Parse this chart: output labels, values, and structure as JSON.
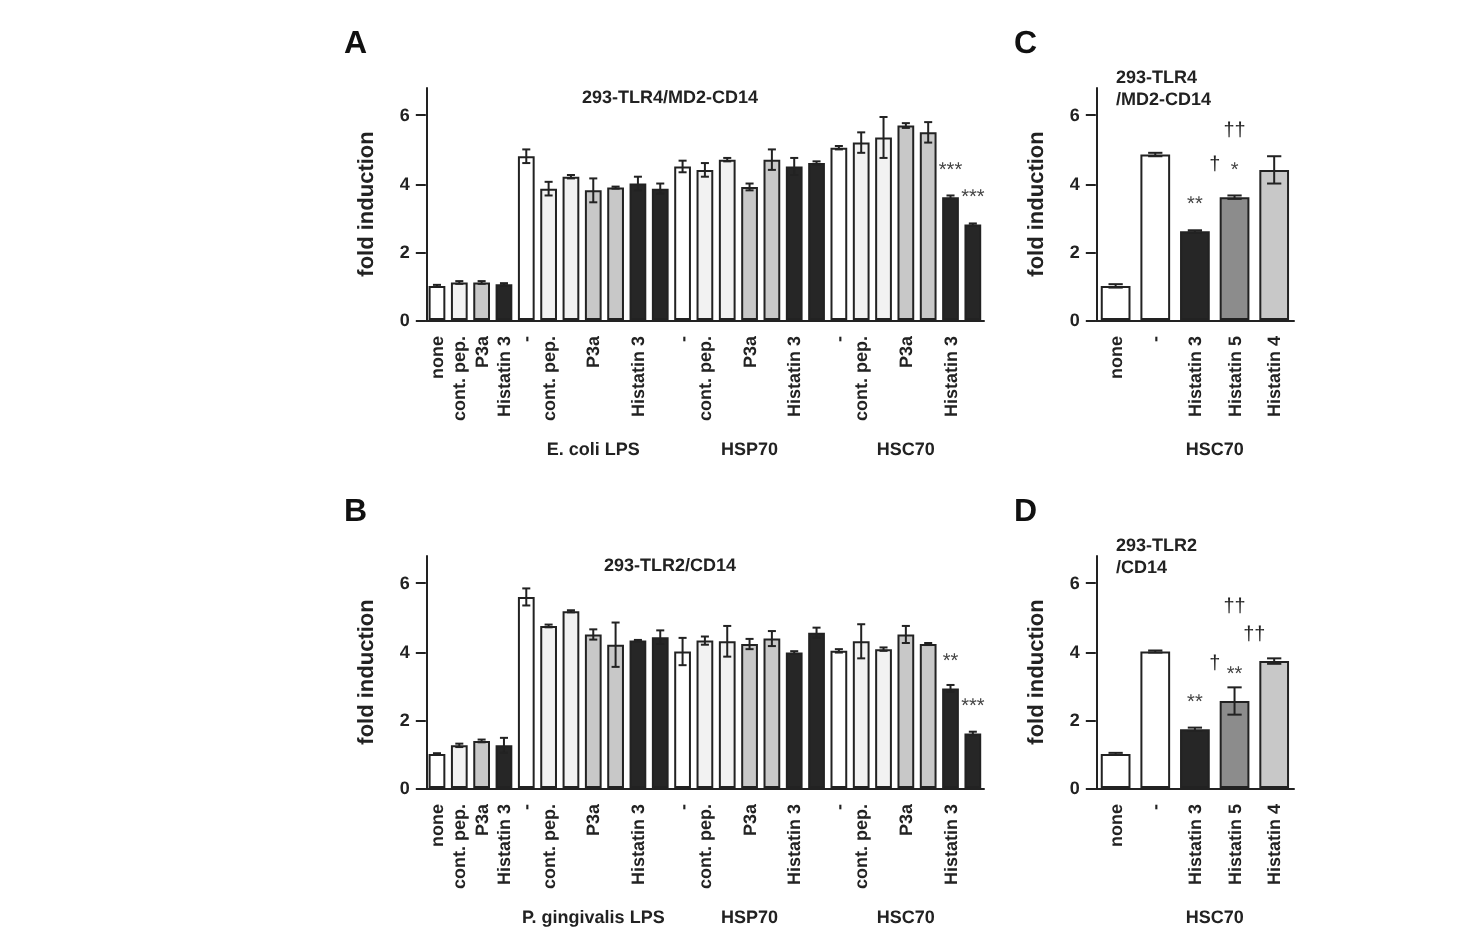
{
  "chart_data": [
    {
      "type": "bar",
      "title": "293-TLR4/MD2-CD14",
      "ylabel": "fold induction",
      "ylim": [
        0,
        6.8
      ],
      "yticks": [
        0,
        2,
        4,
        6
      ],
      "categories": [
        "none",
        "cont. pep.",
        "P3a",
        "Histatin 3",
        "-",
        "cont. pep.",
        null,
        "P3a",
        null,
        "Histatin 3",
        null,
        "-",
        "cont. pep.",
        null,
        "P3a",
        null,
        "Histatin 3",
        null,
        "-",
        "cont. pep.",
        null,
        "P3a",
        null,
        "Histatin 3",
        null
      ],
      "values": [
        1.0,
        1.1,
        1.1,
        1.05,
        4.8,
        3.85,
        4.2,
        3.8,
        3.88,
        4.0,
        3.85,
        4.5,
        4.4,
        4.7,
        3.9,
        4.7,
        4.5,
        4.6,
        5.05,
        5.2,
        5.35,
        5.7,
        5.5,
        3.6,
        2.8
      ],
      "errors": [
        0.03,
        0.04,
        0.04,
        0.03,
        0.2,
        0.2,
        0.05,
        0.35,
        0.03,
        0.2,
        0.15,
        0.17,
        0.2,
        0.05,
        0.1,
        0.3,
        0.25,
        0.05,
        0.05,
        0.3,
        0.6,
        0.07,
        0.3,
        0.05,
        0.03
      ],
      "value_labels": [
        null,
        null,
        null,
        null,
        null,
        null,
        null,
        null,
        null,
        null,
        null,
        null,
        null,
        null,
        null,
        null,
        null,
        null,
        null,
        null,
        null,
        null,
        null,
        "***",
        "***"
      ],
      "colors": [
        "#ffffff",
        "#f2f2f2",
        "#c8c8c8",
        "#262626",
        "#ffffff",
        "#f2f2f2",
        "#f2f2f2",
        "#c8c8c8",
        "#c8c8c8",
        "#262626",
        "#262626",
        "#ffffff",
        "#f2f2f2",
        "#f2f2f2",
        "#c8c8c8",
        "#c8c8c8",
        "#262626",
        "#262626",
        "#ffffff",
        "#f2f2f2",
        "#f2f2f2",
        "#c8c8c8",
        "#c8c8c8",
        "#262626",
        "#262626"
      ],
      "annotations": [
        "A",
        "E. coli LPS",
        "HSP70",
        "HSC70"
      ]
    },
    {
      "type": "bar",
      "title": "293-TLR4\n/MD2-CD14",
      "ylabel": "fold induction",
      "ylim": [
        0,
        6.8
      ],
      "yticks": [
        0,
        2,
        4,
        6
      ],
      "categories": [
        "none",
        "-",
        "Histatin 3",
        "Histatin 5",
        "Histatin 4"
      ],
      "values": [
        1.0,
        4.85,
        2.6,
        3.6,
        4.4
      ],
      "errors": [
        0.05,
        0.05,
        0.03,
        0.05,
        0.4
      ],
      "value_labels": [
        null,
        null,
        "**",
        "*",
        null
      ],
      "colors": [
        "#ffffff",
        "#ffffff",
        "#262626",
        "#8c8c8c",
        "#c8c8c8"
      ],
      "annotations": [
        "C",
        "HSC70",
        "†",
        "††"
      ]
    },
    {
      "type": "bar",
      "title": "293-TLR2/CD14",
      "ylabel": "fold induction",
      "ylim": [
        0,
        6.8
      ],
      "yticks": [
        0,
        2,
        4,
        6
      ],
      "categories": [
        "none",
        "cont. pep.",
        "P3a",
        "Histatin 3",
        "-",
        "cont. pep.",
        null,
        "P3a",
        null,
        "Histatin 3",
        null,
        "-",
        "cont. pep.",
        null,
        "P3a",
        null,
        "Histatin 3",
        null,
        "-",
        "cont. pep.",
        null,
        "P3a",
        null,
        "Histatin 3",
        null
      ],
      "values": [
        1.0,
        1.25,
        1.38,
        1.25,
        5.6,
        4.75,
        5.18,
        4.5,
        4.2,
        4.32,
        4.42,
        4.0,
        4.32,
        4.3,
        4.22,
        4.38,
        3.97,
        4.55,
        4.02,
        4.3,
        4.07,
        4.5,
        4.22,
        2.92,
        1.6
      ],
      "errors": [
        0.02,
        0.05,
        0.04,
        0.22,
        0.25,
        0.04,
        0.03,
        0.15,
        0.65,
        0.02,
        0.2,
        0.4,
        0.12,
        0.45,
        0.15,
        0.22,
        0.04,
        0.15,
        0.05,
        0.5,
        0.05,
        0.25,
        0.03,
        0.1,
        0.05
      ],
      "value_labels": [
        null,
        null,
        null,
        null,
        null,
        null,
        null,
        null,
        null,
        null,
        null,
        null,
        null,
        null,
        null,
        null,
        null,
        null,
        null,
        null,
        null,
        null,
        null,
        "**",
        "***"
      ],
      "colors": [
        "#ffffff",
        "#f2f2f2",
        "#c8c8c8",
        "#262626",
        "#ffffff",
        "#f2f2f2",
        "#f2f2f2",
        "#c8c8c8",
        "#c8c8c8",
        "#262626",
        "#262626",
        "#ffffff",
        "#f2f2f2",
        "#f2f2f2",
        "#c8c8c8",
        "#c8c8c8",
        "#262626",
        "#262626",
        "#ffffff",
        "#f2f2f2",
        "#f2f2f2",
        "#c8c8c8",
        "#c8c8c8",
        "#262626",
        "#262626"
      ],
      "annotations": [
        "B",
        "P. gingivalis LPS",
        "HSP70",
        "HSC70"
      ]
    },
    {
      "type": "bar",
      "title": "293-TLR2\n/CD14",
      "ylabel": "fold induction",
      "ylim": [
        0,
        6.8
      ],
      "yticks": [
        0,
        2,
        4,
        6
      ],
      "categories": [
        "none",
        "-",
        "Histatin 3",
        "Histatin 5",
        "Histatin 4"
      ],
      "values": [
        1.0,
        4.0,
        1.72,
        2.55,
        3.72
      ],
      "errors": [
        0.03,
        0.03,
        0.05,
        0.4,
        0.08
      ],
      "value_labels": [
        null,
        null,
        "**",
        "**",
        null
      ],
      "colors": [
        "#ffffff",
        "#ffffff",
        "#262626",
        "#8c8c8c",
        "#c8c8c8"
      ],
      "annotations": [
        "D",
        "HSC70",
        "†",
        "††",
        "††"
      ]
    }
  ]
}
